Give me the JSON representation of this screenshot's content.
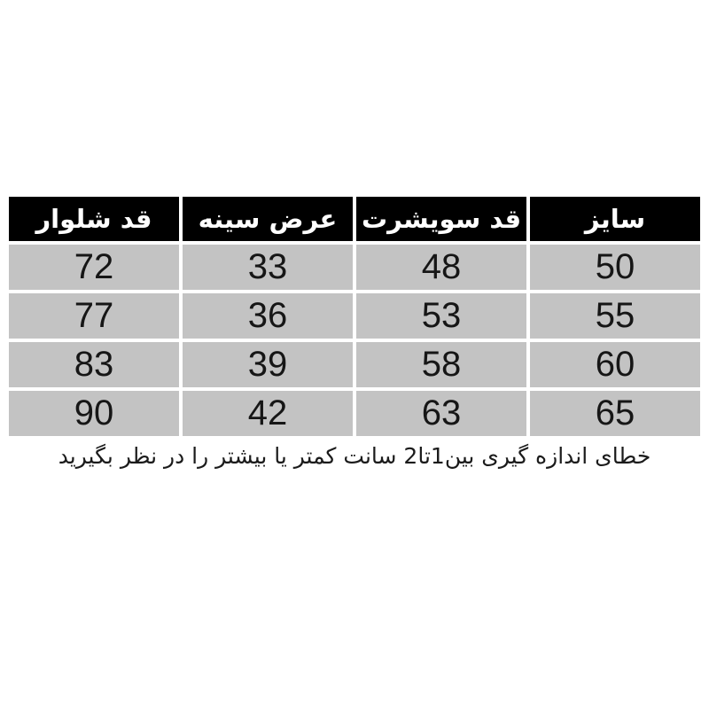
{
  "chart_data": {
    "type": "table",
    "title": "",
    "direction": "rtl",
    "column_order": "first column appears rightmost (RTL)",
    "columns": [
      {
        "id": "size",
        "label": "سایز"
      },
      {
        "id": "sweatshirt-length",
        "label": "قد سویشرت"
      },
      {
        "id": "chest-width",
        "label": "عرض سینه"
      },
      {
        "id": "pants-length",
        "label": "قد شلوار"
      }
    ],
    "rows": [
      [
        "50",
        "48",
        "33",
        "72"
      ],
      [
        "55",
        "53",
        "36",
        "77"
      ],
      [
        "60",
        "58",
        "39",
        "83"
      ],
      [
        "65",
        "63",
        "42",
        "90"
      ]
    ],
    "note": "خطای اندازه گیری بین1تا2 سانت کمتر یا بیشتر را در نظر بگیرید"
  },
  "colors": {
    "page_bg": "#ffffff",
    "header_bg": "#000000",
    "header_text": "#ffffff",
    "cell_bg": "#c3c3c3",
    "cell_text": "#161616",
    "gridline": "#ffffff"
  }
}
